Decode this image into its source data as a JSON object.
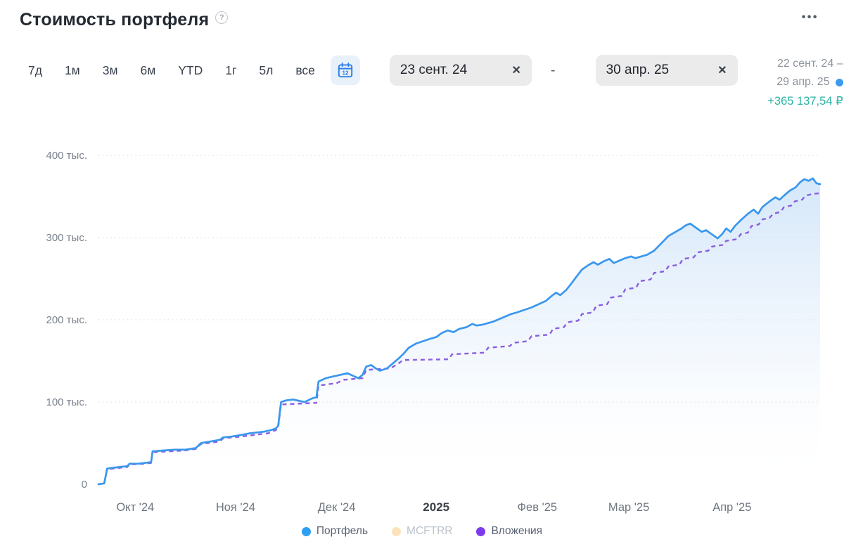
{
  "header": {
    "title": "Стоимость портфеля",
    "help_label": "?",
    "menu_label": "•••"
  },
  "tabs": [
    "7д",
    "1м",
    "3м",
    "6м",
    "YTD",
    "1г",
    "5л",
    "все"
  ],
  "date_range": {
    "from_value": "23 сент. 24",
    "to_value": "30 апр. 25",
    "separator": "-",
    "clear_label": "✕"
  },
  "summary": {
    "range_line1": "22 сент. 24 –",
    "range_line2": "29 апр. 25",
    "gain": "+365 137,54 ₽",
    "gain_color": "#2bb3a3",
    "marker_color": "#3b9af0"
  },
  "legend": [
    {
      "label": "Портфель",
      "color": "#2f9ff2",
      "muted": false
    },
    {
      "label": "MCFTRR",
      "color": "#fbe4bb",
      "muted": true
    },
    {
      "label": "Вложения",
      "color": "#7d3aed",
      "muted": false
    }
  ],
  "chart_data": {
    "type": "line",
    "title": "Стоимость портфеля",
    "xlabel": "",
    "ylabel": "",
    "y_unit": "тыс. ₽",
    "ylim": [
      0,
      420
    ],
    "grid": "horizontal-dotted",
    "legend_position": "bottom",
    "y_ticks": [
      {
        "value": 0,
        "label": "0"
      },
      {
        "value": 100,
        "label": "100 тыс."
      },
      {
        "value": 200,
        "label": "200 тыс."
      },
      {
        "value": 300,
        "label": "300 тыс."
      },
      {
        "value": 400,
        "label": "400 тыс."
      }
    ],
    "x_ticks": [
      {
        "label": "Окт '24",
        "pos": 5.1,
        "bold": false
      },
      {
        "label": "Ноя '24",
        "pos": 19.0,
        "bold": false
      },
      {
        "label": "Дек '24",
        "pos": 33.0,
        "bold": false
      },
      {
        "label": "2025",
        "pos": 46.8,
        "bold": true
      },
      {
        "label": "Фев '25",
        "pos": 60.8,
        "bold": false
      },
      {
        "label": "Мар '25",
        "pos": 73.5,
        "bold": false
      },
      {
        "label": "Апр '25",
        "pos": 87.8,
        "bold": false
      }
    ],
    "series": [
      {
        "name": "Портфель",
        "color": "#3a97ee",
        "style": "solid",
        "area_fill": true,
        "visible": true,
        "values": [
          [
            0,
            0
          ],
          [
            0.8,
            1
          ],
          [
            1.2,
            19
          ],
          [
            2,
            20
          ],
          [
            3,
            21
          ],
          [
            4,
            22
          ],
          [
            4.3,
            25
          ],
          [
            5.5,
            25
          ],
          [
            6.5,
            26
          ],
          [
            7.3,
            27
          ],
          [
            7.5,
            40
          ],
          [
            9,
            41
          ],
          [
            10.5,
            42
          ],
          [
            12,
            42
          ],
          [
            13.5,
            44
          ],
          [
            14.2,
            50
          ],
          [
            15.5,
            52
          ],
          [
            16.8,
            54
          ],
          [
            17.3,
            57
          ],
          [
            18.5,
            58
          ],
          [
            19.8,
            60
          ],
          [
            21,
            62
          ],
          [
            22,
            63
          ],
          [
            23,
            64
          ],
          [
            24,
            66
          ],
          [
            24.6,
            68
          ],
          [
            24.9,
            71
          ],
          [
            25.3,
            100
          ],
          [
            26,
            102
          ],
          [
            27,
            103
          ],
          [
            28,
            101
          ],
          [
            28.6,
            100
          ],
          [
            29.5,
            104
          ],
          [
            30.2,
            106
          ],
          [
            30.5,
            125
          ],
          [
            31.5,
            129
          ],
          [
            32.5,
            131
          ],
          [
            33.5,
            133
          ],
          [
            34.5,
            135
          ],
          [
            35.5,
            131
          ],
          [
            36,
            129
          ],
          [
            36.6,
            133
          ],
          [
            37.1,
            143
          ],
          [
            37.8,
            145
          ],
          [
            38.4,
            141
          ],
          [
            39,
            138
          ],
          [
            40,
            141
          ],
          [
            40.8,
            147
          ],
          [
            41.6,
            153
          ],
          [
            42.2,
            158
          ],
          [
            43,
            166
          ],
          [
            44,
            171
          ],
          [
            45,
            174
          ],
          [
            46,
            177
          ],
          [
            46.8,
            179
          ],
          [
            47.6,
            184
          ],
          [
            48.4,
            187
          ],
          [
            49.2,
            185
          ],
          [
            50,
            189
          ],
          [
            51,
            191
          ],
          [
            51.8,
            195
          ],
          [
            52.4,
            193
          ],
          [
            53.2,
            194
          ],
          [
            54,
            196
          ],
          [
            54.8,
            198
          ],
          [
            55.6,
            201
          ],
          [
            56.4,
            204
          ],
          [
            57.2,
            207
          ],
          [
            58,
            209
          ],
          [
            59,
            212
          ],
          [
            60,
            215
          ],
          [
            61,
            219
          ],
          [
            62,
            223
          ],
          [
            62.8,
            229
          ],
          [
            63.4,
            233
          ],
          [
            64,
            230
          ],
          [
            64.8,
            236
          ],
          [
            65.6,
            245
          ],
          [
            66.2,
            252
          ],
          [
            67,
            261
          ],
          [
            67.8,
            266
          ],
          [
            68.6,
            270
          ],
          [
            69.2,
            267
          ],
          [
            70,
            271
          ],
          [
            70.8,
            274
          ],
          [
            71.4,
            269
          ],
          [
            72.2,
            272
          ],
          [
            73,
            275
          ],
          [
            73.8,
            277
          ],
          [
            74.4,
            275
          ],
          [
            75.2,
            277
          ],
          [
            76,
            279
          ],
          [
            77,
            284
          ],
          [
            78,
            293
          ],
          [
            79,
            302
          ],
          [
            80,
            307
          ],
          [
            80.8,
            311
          ],
          [
            81.4,
            315
          ],
          [
            82,
            317
          ],
          [
            82.8,
            312
          ],
          [
            83.6,
            307
          ],
          [
            84.2,
            309
          ],
          [
            85,
            304
          ],
          [
            85.8,
            299
          ],
          [
            86.4,
            304
          ],
          [
            87,
            311
          ],
          [
            87.6,
            307
          ],
          [
            88.2,
            314
          ],
          [
            89,
            321
          ],
          [
            90,
            329
          ],
          [
            90.8,
            334
          ],
          [
            91.4,
            329
          ],
          [
            92,
            337
          ],
          [
            93,
            344
          ],
          [
            93.8,
            349
          ],
          [
            94.4,
            346
          ],
          [
            95,
            351
          ],
          [
            95.8,
            357
          ],
          [
            96.6,
            361
          ],
          [
            97.2,
            367
          ],
          [
            97.8,
            371
          ],
          [
            98.4,
            369
          ],
          [
            99,
            372
          ],
          [
            99.5,
            366
          ],
          [
            100,
            365
          ]
        ]
      },
      {
        "name": "MCFTRR",
        "color": "#fbe4bb",
        "style": "solid",
        "area_fill": false,
        "visible": false,
        "values": []
      },
      {
        "name": "Вложения",
        "color": "#8a5fe0",
        "style": "dashed",
        "area_fill": false,
        "visible": true,
        "values": [
          [
            0,
            0
          ],
          [
            0.8,
            1
          ],
          [
            1.2,
            18
          ],
          [
            3,
            20
          ],
          [
            4,
            21
          ],
          [
            4.3,
            24
          ],
          [
            6.5,
            25
          ],
          [
            7.3,
            26
          ],
          [
            7.5,
            39
          ],
          [
            12,
            41
          ],
          [
            13.5,
            43
          ],
          [
            14.2,
            49
          ],
          [
            16.8,
            52
          ],
          [
            17.3,
            56
          ],
          [
            19.8,
            58
          ],
          [
            23.5,
            62
          ],
          [
            24.6,
            66
          ],
          [
            24.9,
            69
          ],
          [
            25.3,
            97
          ],
          [
            30.2,
            99
          ],
          [
            30.5,
            120
          ],
          [
            33,
            123
          ],
          [
            34,
            127
          ],
          [
            36.6,
            129
          ],
          [
            37.1,
            139
          ],
          [
            40.5,
            141
          ],
          [
            41.6,
            147
          ],
          [
            42.2,
            151
          ],
          [
            48.5,
            152
          ],
          [
            49,
            158
          ],
          [
            53.5,
            160
          ],
          [
            54,
            166
          ],
          [
            57,
            168
          ],
          [
            57.5,
            172
          ],
          [
            59.5,
            174
          ],
          [
            60,
            180
          ],
          [
            62.5,
            182
          ],
          [
            63,
            189
          ],
          [
            64.5,
            191
          ],
          [
            65,
            197
          ],
          [
            66.5,
            199
          ],
          [
            67,
            207
          ],
          [
            68.5,
            209
          ],
          [
            69,
            217
          ],
          [
            70.5,
            219
          ],
          [
            71,
            227
          ],
          [
            72.5,
            229
          ],
          [
            73,
            237
          ],
          [
            74.5,
            239
          ],
          [
            75,
            247
          ],
          [
            76.5,
            249
          ],
          [
            77,
            257
          ],
          [
            78.5,
            259
          ],
          [
            79,
            265
          ],
          [
            80.5,
            267
          ],
          [
            81,
            274
          ],
          [
            82.5,
            276
          ],
          [
            83,
            282
          ],
          [
            84.5,
            284
          ],
          [
            85,
            289
          ],
          [
            86.5,
            291
          ],
          [
            87,
            296
          ],
          [
            88.5,
            298
          ],
          [
            89,
            304
          ],
          [
            90,
            306
          ],
          [
            90.5,
            314
          ],
          [
            91.5,
            316
          ],
          [
            92,
            322
          ],
          [
            93,
            324
          ],
          [
            93.5,
            329
          ],
          [
            94.5,
            331
          ],
          [
            95,
            337
          ],
          [
            96,
            339
          ],
          [
            96.5,
            344
          ],
          [
            97.5,
            346
          ],
          [
            98,
            351
          ],
          [
            99,
            353
          ],
          [
            100,
            354
          ]
        ]
      }
    ]
  }
}
